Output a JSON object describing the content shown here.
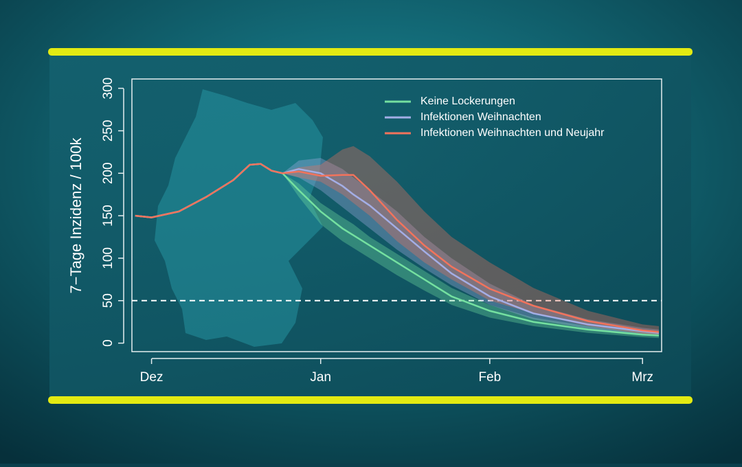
{
  "chart_data": {
    "type": "line",
    "ylabel": "7−Tage Inzidenz / 100k",
    "x": [
      -3,
      0,
      5,
      10,
      15,
      18,
      20,
      22,
      24,
      27,
      31,
      35,
      37,
      40,
      45,
      50,
      55,
      62,
      70,
      80,
      90,
      93
    ],
    "xlim": [
      -3.6,
      93.5
    ],
    "xticks": [
      {
        "value": 0,
        "label": "Dez"
      },
      {
        "value": 31,
        "label": "Jan"
      },
      {
        "value": 62,
        "label": "Feb"
      },
      {
        "value": 90,
        "label": "Mrz"
      }
    ],
    "ylim": [
      -10,
      311
    ],
    "yticks": [
      0,
      50,
      100,
      150,
      200,
      250,
      300
    ],
    "hline": 50,
    "legend": "top-right",
    "series": [
      {
        "name": "Keine Lockerungen",
        "color": "#74e0a0",
        "values": [
          150,
          148,
          155,
          172,
          192,
          210,
          211,
          203,
          200,
          180,
          155,
          135,
          127,
          115,
          95,
          75,
          55,
          38,
          25,
          16,
          10,
          9
        ],
        "lower": [
          null,
          null,
          null,
          null,
          null,
          null,
          null,
          null,
          200,
          172,
          140,
          120,
          112,
          100,
          80,
          62,
          45,
          30,
          20,
          12,
          7,
          6
        ],
        "upper": [
          null,
          null,
          null,
          null,
          null,
          null,
          null,
          null,
          200,
          188,
          165,
          148,
          140,
          125,
          105,
          85,
          65,
          45,
          30,
          20,
          13,
          12
        ]
      },
      {
        "name": "Infektionen Weihnachten",
        "color": "#a3aee6",
        "values": [
          150,
          148,
          155,
          172,
          192,
          210,
          211,
          203,
          200,
          205,
          200,
          185,
          175,
          162,
          135,
          108,
          82,
          55,
          35,
          22,
          14,
          12
        ],
        "lower": [
          null,
          null,
          null,
          null,
          null,
          null,
          null,
          null,
          200,
          195,
          180,
          160,
          150,
          135,
          110,
          88,
          68,
          45,
          28,
          17,
          10,
          9
        ],
        "upper": [
          null,
          null,
          null,
          null,
          null,
          null,
          null,
          null,
          200,
          215,
          218,
          205,
          195,
          180,
          155,
          125,
          100,
          70,
          45,
          28,
          18,
          16
        ]
      },
      {
        "name": "Infektionen Weihnachten und Neujahr",
        "color": "#f2735c",
        "values": [
          150,
          148,
          155,
          172,
          192,
          210,
          211,
          203,
          200,
          202,
          197,
          198,
          198,
          180,
          145,
          115,
          90,
          64,
          44,
          26,
          15,
          13
        ],
        "lower": [
          null,
          null,
          null,
          null,
          null,
          null,
          null,
          null,
          200,
          195,
          190,
          175,
          165,
          150,
          120,
          95,
          75,
          50,
          35,
          20,
          11,
          10
        ],
        "upper": [
          null,
          null,
          null,
          null,
          null,
          null,
          null,
          null,
          200,
          207,
          210,
          228,
          232,
          220,
          190,
          155,
          125,
          95,
          65,
          38,
          22,
          20
        ]
      }
    ]
  }
}
